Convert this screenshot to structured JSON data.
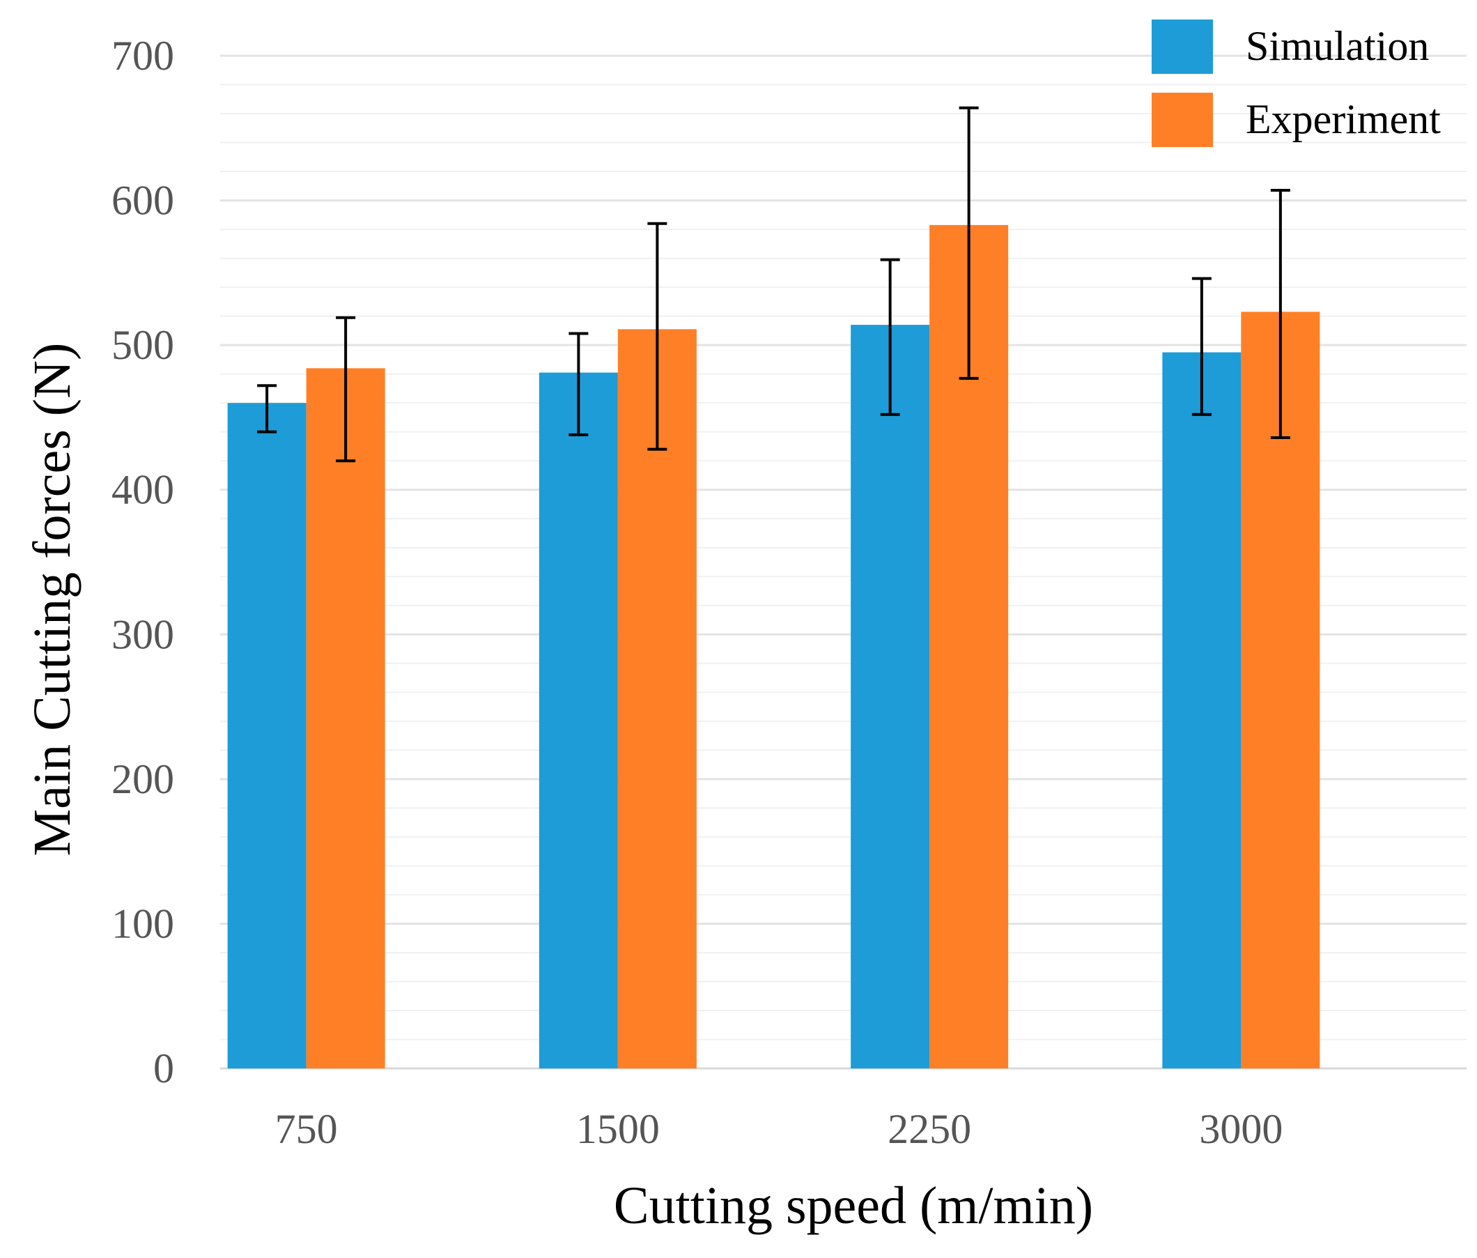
{
  "chart_data": {
    "type": "bar",
    "title": "",
    "xlabel": "Cutting speed (m/min)",
    "ylabel": "Main Cutting forces (N)",
    "categories": [
      "750",
      "1500",
      "2250",
      "3000"
    ],
    "ylim": [
      0,
      700
    ],
    "yticks": [
      "0",
      "100",
      "200",
      "300",
      "400",
      "500",
      "600",
      "700"
    ],
    "grid": true,
    "legend_position": "top-right",
    "series": [
      {
        "name": "Simulation",
        "color": "#1E9CD7",
        "values": [
          460,
          481,
          514,
          495
        ],
        "error_low": [
          440,
          438,
          452,
          452
        ],
        "error_high": [
          472,
          508,
          559,
          546
        ]
      },
      {
        "name": "Experiment",
        "color": "#FF7F27",
        "values": [
          484,
          511,
          583,
          523
        ],
        "error_low": [
          420,
          428,
          477,
          436
        ],
        "error_high": [
          519,
          584,
          664,
          607
        ]
      }
    ]
  }
}
